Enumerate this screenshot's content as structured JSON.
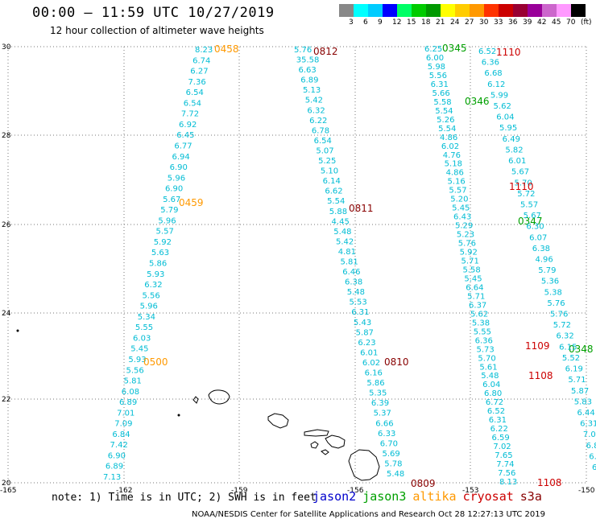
{
  "title": "00:00 – 11:59 UTC 10/27/2019",
  "subtitle": "12 hour collection of altimeter wave heights",
  "note": "note: 1) Time is in UTC; 2) SWH is in feet",
  "credit": "NOAA/NESDIS Center for Satellite Applications and Research   Oct 28 12:27:13 UTC 2019",
  "satellites": [
    {
      "name": "jason2",
      "color": "#0000cc"
    },
    {
      "name": "jason3",
      "color": "#00a000"
    },
    {
      "name": "altika",
      "color": "#ff9900"
    },
    {
      "name": "cryosat",
      "color": "#cc0000"
    },
    {
      "name": "s3a",
      "color": "#880000"
    }
  ],
  "colorbar": {
    "labels": [
      "3",
      "6",
      "9",
      "12",
      "15",
      "18",
      "21",
      "24",
      "27",
      "30",
      "33",
      "36",
      "39",
      "42",
      "45",
      "70",
      "(ft)"
    ],
    "colors": [
      "#888888",
      "#00ffff",
      "#00ccff",
      "#0000ff",
      "#00ff66",
      "#00cc00",
      "#009900",
      "#ffff00",
      "#ffcc00",
      "#ff9900",
      "#ff3300",
      "#cc0000",
      "#990033",
      "#990099",
      "#cc66cc",
      "#ff99ff",
      "#000000"
    ]
  },
  "axes": {
    "lat_labels": [
      "30",
      "28",
      "26",
      "24",
      "22",
      "20"
    ],
    "lon_labels": [
      "-165",
      "-162",
      "-159",
      "-156",
      "-153",
      "-150"
    ]
  },
  "tracks": [
    {
      "color": "#00bcd4",
      "values": [
        "8.23",
        "6.74",
        "6.27",
        "7.36",
        "6.54",
        "6.54",
        "7.72",
        "6.92",
        "6.45",
        "6.77",
        "6.94",
        "6.90",
        "5.96",
        "6.90",
        "5.67",
        "5.79",
        "5.96",
        "5.57",
        "5.92",
        "5.63",
        "5.86",
        "5.93",
        "6.32",
        "5.56",
        "5.96",
        "5.34",
        "5.55",
        "6.03",
        "5.45",
        "5.93",
        "5.56",
        "5.81",
        "6.08",
        "6.89",
        "7.01",
        "7.09",
        "6.84",
        "7.42",
        "6.90",
        "6.89",
        "7.13"
      ],
      "times": [
        {
          "t": "0458",
          "c": "#ff9900"
        },
        {
          "t": "0459",
          "c": "#ff9900"
        },
        {
          "t": "0500",
          "c": "#ff9900"
        }
      ]
    },
    {
      "color": "#00bcd4",
      "values": [
        "5.76",
        "35.58",
        "6.63",
        "6.89",
        "5.13",
        "5.42",
        "6.32",
        "6.22",
        "6.78",
        "6.54",
        "5.07",
        "5.25",
        "5.10",
        "6.14",
        "6.62",
        "5.54",
        "5.88",
        "4.45",
        "5.48",
        "5.42",
        "4.81",
        "5.81",
        "6.46",
        "6.38",
        "5.48",
        "5.53",
        "6.31",
        "5.43",
        "5.87",
        "6.23",
        "6.01",
        "6.02",
        "6.16",
        "5.86",
        "5.35",
        "6.39",
        "5.37",
        "6.66",
        "6.33",
        "6.70",
        "5.69",
        "5.78",
        "5.48"
      ],
      "times": [
        {
          "t": "0812",
          "c": "#880000"
        },
        {
          "t": "0811",
          "c": "#880000"
        },
        {
          "t": "0810",
          "c": "#880000"
        },
        {
          "t": "0809",
          "c": "#880000"
        }
      ]
    },
    {
      "color": "#00bcd4",
      "values": [
        "6.25",
        "6.00",
        "5.98",
        "5.56",
        "6.31",
        "5.66",
        "5.58",
        "5.54",
        "5.26",
        "5.54",
        "4.86",
        "6.02",
        "4.76",
        "5.18",
        "4.86",
        "5.16",
        "5.57",
        "5.20",
        "5.45",
        "6.43",
        "5.29",
        "5.23",
        "5.76",
        "5.92",
        "5.71",
        "5.58",
        "5.45",
        "6.64",
        "5.71",
        "6.37",
        "5.62",
        "5.38",
        "5.55",
        "6.36",
        "5.73",
        "5.70",
        "5.61",
        "5.48",
        "6.04",
        "6.80",
        "6.72",
        "6.52",
        "6.31",
        "6.22",
        "6.59",
        "7.02",
        "7.65",
        "7.74",
        "7.56",
        "8.13"
      ],
      "times": [
        {
          "t": "0345",
          "c": "#00a000"
        },
        {
          "t": "0346",
          "c": "#00a000"
        },
        {
          "t": "0347",
          "c": "#00a000"
        },
        {
          "t": "0348",
          "c": "#00a000"
        }
      ]
    },
    {
      "color": "#00bcd4",
      "values": [
        "6.52",
        "6.36",
        "6.68",
        "6.12",
        "5.99",
        "5.62",
        "6.04",
        "5.95",
        "6.49",
        "5.82",
        "6.01",
        "5.67",
        "5.70",
        "5.72",
        "5.57",
        "5.67",
        "6.30",
        "6.07",
        "6.38",
        "4.96",
        "5.79",
        "5.36",
        "5.38",
        "5.76",
        "5.76",
        "5.72",
        "6.32",
        "6.15",
        "5.52",
        "6.19",
        "5.71",
        "5.87",
        "5.83",
        "6.44",
        "6.31",
        "7.03",
        "6.86",
        "6.3",
        "6.2"
      ],
      "times": [
        {
          "t": "1110",
          "c": "#cc0000"
        },
        {
          "t": "1110",
          "c": "#cc0000"
        },
        {
          "t": "1109",
          "c": "#cc0000"
        },
        {
          "t": "1108",
          "c": "#cc0000"
        },
        {
          "t": "1108",
          "c": "#cc0000"
        }
      ]
    }
  ]
}
